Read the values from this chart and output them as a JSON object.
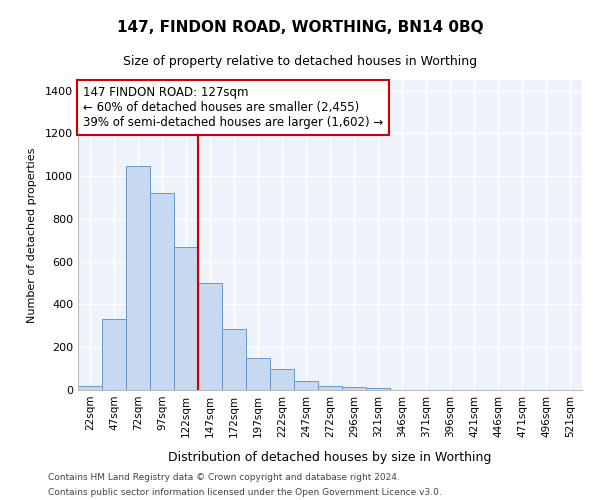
{
  "title": "147, FINDON ROAD, WORTHING, BN14 0BQ",
  "subtitle": "Size of property relative to detached houses in Worthing",
  "xlabel": "Distribution of detached houses by size in Worthing",
  "ylabel": "Number of detached properties",
  "bar_color": "#c8d8ee",
  "bar_edge_color": "#6699cc",
  "background_color": "#eef2fa",
  "grid_color": "#ffffff",
  "annotation_line_color": "#cc0000",
  "annotation_box_color": "#cc0000",
  "categories": [
    "22sqm",
    "47sqm",
    "72sqm",
    "97sqm",
    "122sqm",
    "147sqm",
    "172sqm",
    "197sqm",
    "222sqm",
    "247sqm",
    "272sqm",
    "296sqm",
    "321sqm",
    "346sqm",
    "371sqm",
    "396sqm",
    "421sqm",
    "446sqm",
    "471sqm",
    "496sqm",
    "521sqm"
  ],
  "values": [
    20,
    330,
    1050,
    920,
    670,
    500,
    285,
    150,
    100,
    40,
    20,
    15,
    10,
    0,
    0,
    0,
    0,
    0,
    0,
    0,
    0
  ],
  "property_label": "147 FINDON ROAD: 127sqm",
  "annotation_line1": "← 60% of detached houses are smaller (2,455)",
  "annotation_line2": "39% of semi-detached houses are larger (1,602) →",
  "red_line_x": 4.5,
  "ylim": [
    0,
    1450
  ],
  "yticks": [
    0,
    200,
    400,
    600,
    800,
    1000,
    1200,
    1400
  ],
  "footnote1": "Contains HM Land Registry data © Crown copyright and database right 2024.",
  "footnote2": "Contains public sector information licensed under the Open Government Licence v3.0."
}
